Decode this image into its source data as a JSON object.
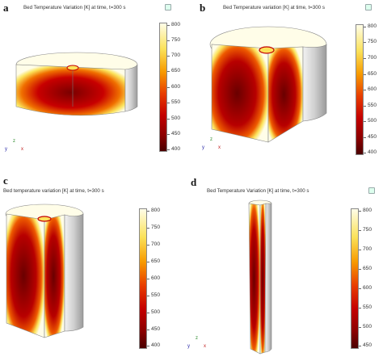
{
  "panels": [
    {
      "id": "a",
      "label": "a",
      "title": "Bed Temperature Variation [K] at time, t=300 s",
      "ticks": [
        "800",
        "750",
        "700",
        "650",
        "600",
        "550",
        "500",
        "450",
        "400"
      ],
      "axes": {
        "y": "y",
        "x": "x",
        "z": "z"
      }
    },
    {
      "id": "b",
      "label": "b",
      "title": "Bed Temperature variation [K] at time, t=300 s",
      "ticks": [
        "800",
        "750",
        "700",
        "650",
        "600",
        "550",
        "500",
        "450",
        "400"
      ],
      "axes": {
        "y": "y",
        "x": "x",
        "z": "z"
      }
    },
    {
      "id": "c",
      "label": "c",
      "title": "Bed temperature variation [K] at time, t=300 s",
      "ticks": [
        "800",
        "750",
        "700",
        "650",
        "600",
        "550",
        "500",
        "450",
        "400"
      ],
      "axes": {
        "y": "y",
        "x": "x",
        "z": "z"
      }
    },
    {
      "id": "d",
      "label": "d",
      "title": "Bed Temperature Variation [K] at time, t=300 s",
      "ticks": [
        "800",
        "750",
        "700",
        "650",
        "600",
        "550",
        "500",
        "450"
      ],
      "axes": {
        "y": "y",
        "x": "x",
        "z": "z"
      }
    }
  ],
  "colors": {
    "hot": "#fffde8",
    "warm": "#fbe25a",
    "mid": "#f79a00",
    "cool": "#c40000",
    "cold": "#5a0000",
    "shell": "#d8d8d8"
  }
}
